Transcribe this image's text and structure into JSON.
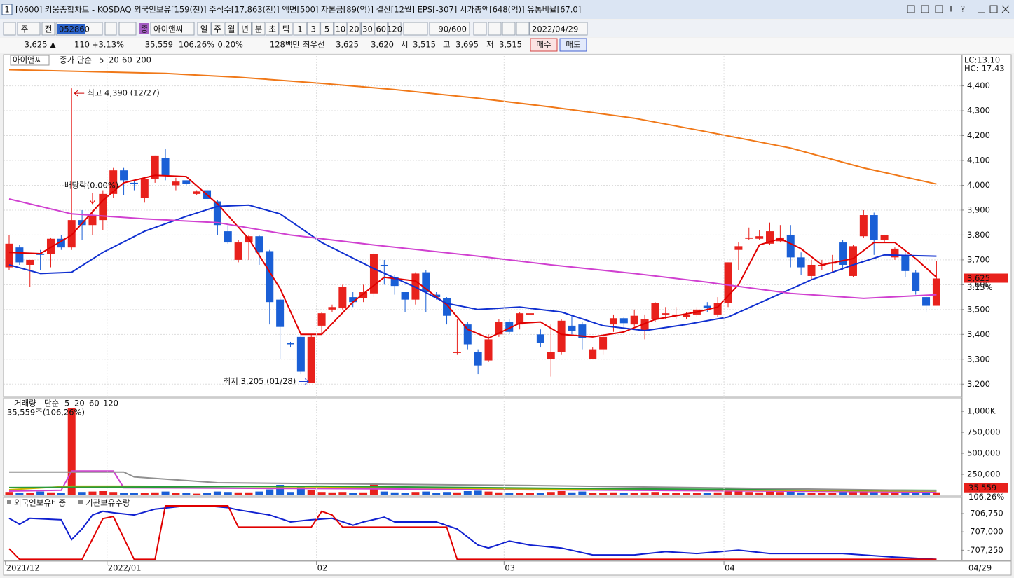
{
  "window": {
    "number": "1",
    "title": "[0600] 키움종합차트 - KOSDAQ 외국인보유[159(천)] 주식수[17,863(천)] 액면[500] 자본금[89(억)] 결산[12월] EPS[-307] 시가총액[648(억)] 유통비율[67.0]",
    "glyphs": [
      "T",
      "?"
    ]
  },
  "toolbar": {
    "period_type": "주",
    "market": "전",
    "code": "052860",
    "name_badge": "종",
    "name": "아이앤씨",
    "periods": [
      "일",
      "주",
      "월",
      "년",
      "분",
      "초",
      "틱"
    ],
    "intervals": [
      "1",
      "3",
      "5",
      "10",
      "20",
      "30",
      "60",
      "120"
    ],
    "count": "90/600",
    "date": "2022/04/29"
  },
  "quote": {
    "price": "3,625 ▲",
    "change": "110",
    "change_rate": "+3.13%",
    "volume": "35,559",
    "volume_ratio": "106.26%",
    "turnover": "0.20%",
    "amount": "128백만",
    "best_label": "최우선",
    "best_ask": "3,625",
    "best_bid": "3,620",
    "open_label": "시",
    "open": "3,515",
    "high_label": "고",
    "high": "3,695",
    "low_label": "저",
    "low": "3,515",
    "buy": "매수",
    "sell": "매도"
  },
  "chart_data": [
    {
      "type": "candlestick",
      "stock": "아이앤씨",
      "legend_label": "종가 단순",
      "up_color": "#e8211c",
      "down_color": "#1a5fd6",
      "grid": true,
      "open": [
        3670,
        3750,
        3680,
        3725,
        3725,
        3785,
        3750,
        3860,
        3840,
        3860,
        3965,
        4060,
        4010,
        3950,
        4025,
        4110,
        4000,
        4020,
        3965,
        3980,
        3935,
        3815,
        3700,
        3770,
        3795,
        3735,
        3540,
        3365,
        3390,
        3205,
        3435,
        3500,
        3505,
        3550,
        3545,
        3565,
        3680,
        3630,
        3570,
        3540,
        3650,
        3560,
        3545,
        3325,
        3440,
        3330,
        3295,
        3400,
        3450,
        3440,
        3480,
        3400,
        3300,
        3330,
        3435,
        3440,
        3300,
        3340,
        3440,
        3465,
        3440,
        3415,
        3460,
        3480,
        3475,
        3470,
        3480,
        3515,
        3480,
        3525,
        3740,
        3785,
        3785,
        3765,
        3775,
        3800,
        3710,
        3635,
        3675,
        3685,
        3770,
        3635,
        3795,
        3880,
        3780,
        3710,
        3720,
        3650,
        3550,
        3515
      ],
      "high": [
        3800,
        3760,
        3700,
        3740,
        3790,
        3800,
        4390,
        3900,
        3900,
        3980,
        4070,
        4070,
        4020,
        4030,
        4120,
        4145,
        4030,
        4020,
        3980,
        3990,
        3940,
        3840,
        3780,
        3800,
        3800,
        3740,
        3550,
        3370,
        3400,
        3400,
        3490,
        3520,
        3600,
        3570,
        3600,
        3730,
        3700,
        3640,
        3570,
        3650,
        3660,
        3570,
        3550,
        3460,
        3450,
        3340,
        3400,
        3460,
        3460,
        3490,
        3530,
        3420,
        3440,
        3460,
        3480,
        3450,
        3350,
        3400,
        3480,
        3470,
        3500,
        3480,
        3530,
        3510,
        3510,
        3490,
        3510,
        3530,
        3550,
        3690,
        3770,
        3830,
        3820,
        3850,
        3840,
        3840,
        3730,
        3700,
        3700,
        3720,
        3780,
        3760,
        3900,
        3890,
        3800,
        3750,
        3730,
        3660,
        3560,
        3695
      ],
      "low": [
        3660,
        3680,
        3590,
        3660,
        3670,
        3740,
        3740,
        3780,
        3800,
        3820,
        3950,
        3960,
        3980,
        3930,
        4010,
        4020,
        3980,
        4000,
        3960,
        3935,
        3800,
        3765,
        3690,
        3700,
        3680,
        3440,
        3300,
        3350,
        3240,
        3205,
        3400,
        3490,
        3500,
        3510,
        3530,
        3550,
        3600,
        3560,
        3490,
        3520,
        3490,
        3540,
        3440,
        3320,
        3340,
        3240,
        3290,
        3390,
        3400,
        3420,
        3460,
        3350,
        3230,
        3320,
        3400,
        3340,
        3300,
        3320,
        3410,
        3420,
        3430,
        3380,
        3450,
        3460,
        3460,
        3460,
        3470,
        3490,
        3470,
        3510,
        3660,
        3780,
        3780,
        3760,
        3770,
        3670,
        3640,
        3620,
        3660,
        3650,
        3660,
        3630,
        3790,
        3720,
        3770,
        3700,
        3630,
        3560,
        3490,
        3515
      ],
      "close": [
        3765,
        3690,
        3700,
        3720,
        3785,
        3750,
        3860,
        3840,
        3880,
        3965,
        4060,
        4020,
        4005,
        4025,
        4120,
        4040,
        4015,
        4005,
        3975,
        3945,
        3840,
        3770,
        3770,
        3795,
        3730,
        3530,
        3430,
        3360,
        3250,
        3390,
        3485,
        3510,
        3590,
        3530,
        3570,
        3725,
        3675,
        3595,
        3540,
        3645,
        3570,
        3550,
        3475,
        3330,
        3360,
        3275,
        3380,
        3450,
        3410,
        3485,
        3485,
        3365,
        3330,
        3455,
        3415,
        3385,
        3340,
        3390,
        3465,
        3445,
        3475,
        3460,
        3525,
        3485,
        3480,
        3480,
        3500,
        3505,
        3525,
        3690,
        3755,
        3790,
        3795,
        3815,
        3790,
        3710,
        3670,
        3680,
        3680,
        3690,
        3680,
        3755,
        3880,
        3780,
        3800,
        3745,
        3655,
        3575,
        3515,
        3625
      ],
      "series": [
        {
          "name": "5",
          "color": "#e00000",
          "x": [
            0,
            3,
            6,
            9,
            11,
            14,
            17,
            20,
            23,
            26,
            28,
            30,
            33,
            36,
            39,
            42,
            44,
            46,
            49,
            51,
            53,
            56,
            59,
            62,
            66,
            68,
            70,
            72,
            74,
            76,
            78,
            81,
            83,
            85,
            87,
            89
          ],
          "values": [
            3730,
            3725,
            3800,
            3940,
            4010,
            4040,
            4035,
            3925,
            3785,
            3585,
            3400,
            3400,
            3530,
            3630,
            3615,
            3520,
            3420,
            3385,
            3445,
            3450,
            3400,
            3390,
            3410,
            3460,
            3490,
            3510,
            3600,
            3760,
            3785,
            3745,
            3680,
            3705,
            3770,
            3770,
            3705,
            3630
          ]
        },
        {
          "name": "20",
          "color": "#1030d0",
          "x": [
            0,
            3,
            6,
            9,
            13,
            17,
            20,
            23,
            26,
            30,
            35,
            39,
            42,
            45,
            49,
            53,
            57,
            61,
            65,
            69,
            73,
            77,
            81,
            84,
            89
          ],
          "values": [
            3680,
            3645,
            3650,
            3730,
            3815,
            3875,
            3915,
            3920,
            3885,
            3770,
            3665,
            3590,
            3525,
            3500,
            3510,
            3490,
            3435,
            3415,
            3440,
            3470,
            3545,
            3620,
            3680,
            3720,
            3715
          ]
        },
        {
          "name": "60",
          "color": "#d040d0",
          "x": [
            0,
            6,
            13,
            20,
            27,
            35,
            45,
            52,
            60,
            67,
            75,
            82,
            89
          ],
          "values": [
            3945,
            3885,
            3865,
            3850,
            3800,
            3760,
            3715,
            3680,
            3645,
            3610,
            3565,
            3545,
            3560
          ]
        },
        {
          "name": "200",
          "color": "#f07818",
          "x": [
            0,
            15,
            22,
            30,
            37,
            45,
            52,
            60,
            67,
            75,
            82,
            89
          ],
          "values": [
            4465,
            4450,
            4435,
            4410,
            4385,
            4350,
            4315,
            4270,
            4215,
            4150,
            4070,
            4005
          ]
        }
      ],
      "ylim": [
        3150,
        4520
      ],
      "yticks": [
        {
          "value": 3200,
          "label": "3,200"
        },
        {
          "value": 3300,
          "label": "3,300"
        },
        {
          "value": 3400,
          "label": "3,400"
        },
        {
          "value": 3500,
          "label": "3,500"
        },
        {
          "value": 3600,
          "label": "3,600"
        },
        {
          "value": 3700,
          "label": "3,700"
        },
        {
          "value": 3800,
          "label": "3,800"
        },
        {
          "value": 3900,
          "label": "3,900"
        },
        {
          "value": 4000,
          "label": "4,000"
        },
        {
          "value": 4100,
          "label": "4,100"
        },
        {
          "value": 4200,
          "label": "4,200"
        },
        {
          "value": 4300,
          "label": "4,300"
        },
        {
          "value": 4400,
          "label": "4,400"
        }
      ],
      "annotations": [
        {
          "text": "최고 4,390 (12/27)",
          "index": 6,
          "value": 4390
        },
        {
          "text": "최저 3,205 (01/28)",
          "index": 29,
          "value": 3205
        },
        {
          "text": "배당락(0.00%)",
          "index": 8
        }
      ],
      "lc_label": "LC:13.10",
      "hc_label": "HC:-17.43",
      "last_price": {
        "value": 3625,
        "label": "3,625"
      },
      "last_change": "3.13%"
    },
    {
      "type": "bar",
      "legend_label": "거래량",
      "ma_label": "단순",
      "up_color": "#e8211c",
      "down_color": "#1a5fd6",
      "values": [
        40000,
        30000,
        25000,
        45000,
        35000,
        30000,
        1035000,
        40000,
        45000,
        50000,
        40000,
        30000,
        25000,
        30000,
        35000,
        45000,
        30000,
        25000,
        20000,
        25000,
        45000,
        40000,
        35000,
        35000,
        45000,
        70000,
        125000,
        40000,
        100000,
        65000,
        40000,
        35000,
        40000,
        30000,
        35000,
        135000,
        45000,
        35000,
        30000,
        40000,
        45000,
        30000,
        40000,
        35000,
        50000,
        55000,
        45000,
        35000,
        30000,
        30000,
        25000,
        30000,
        40000,
        50000,
        35000,
        45000,
        30000,
        30000,
        35000,
        25000,
        30000,
        35000,
        40000,
        30000,
        25000,
        30000,
        25000,
        30000,
        35000,
        55000,
        50000,
        40000,
        35000,
        45000,
        40000,
        45000,
        35000,
        30000,
        30000,
        25000,
        40000,
        45000,
        55000,
        40000,
        35000,
        35000,
        45000,
        55000,
        40000,
        35559
      ],
      "series": [
        {
          "name": "5",
          "color": "#d040d0",
          "x": [
            0,
            5,
            6,
            10,
            11,
            30,
            89
          ],
          "values": [
            50000,
            60000,
            290000,
            290000,
            90000,
            80000,
            40000
          ]
        },
        {
          "name": "20",
          "color": "#c8b400",
          "x": [
            0,
            6,
            11,
            30,
            50,
            89
          ],
          "values": [
            67000,
            109000,
            109000,
            101000,
            76000,
            50000
          ]
        },
        {
          "name": "60",
          "color": "#2a9a3a",
          "x": [
            0,
            30,
            60,
            89
          ],
          "values": [
            92600,
            109000,
            76000,
            59000
          ]
        },
        {
          "name": "120",
          "color": "#909090",
          "x": [
            0,
            11,
            12,
            20,
            50,
            89
          ],
          "values": [
            278000,
            278000,
            220000,
            150000,
            118000,
            55000
          ]
        }
      ],
      "header": "35,559주(106,26%)",
      "current": {
        "value": 35559,
        "label": "35,559"
      },
      "ratio_label": "106,26%",
      "ylim": [
        0,
        1160000
      ],
      "yticks": [
        {
          "value": 250000,
          "label": "250,000"
        },
        {
          "value": 500000,
          "label": "500,000"
        },
        {
          "value": 750000,
          "label": "750,000"
        },
        {
          "value": 1000000,
          "label": "1,000K"
        }
      ]
    },
    {
      "type": "line",
      "series": [
        {
          "name": "외국인보유비중",
          "color": "#1020d0",
          "x": [
            0,
            1,
            2,
            5,
            6,
            7,
            8,
            9,
            10,
            12,
            14,
            17,
            19,
            21,
            22,
            25,
            27,
            29,
            31,
            33,
            34,
            36,
            37,
            41,
            43,
            45,
            46,
            48,
            50,
            53,
            56,
            60,
            63,
            66,
            70,
            73,
            80,
            85,
            89
          ],
          "values": [
            -706815,
            -706895,
            -706815,
            -706835,
            -707105,
            -706960,
            -706770,
            -706720,
            -706740,
            -706770,
            -706690,
            -706645,
            -706645,
            -706670,
            -706700,
            -706770,
            -706865,
            -706835,
            -706815,
            -706910,
            -706865,
            -706800,
            -706865,
            -706865,
            -706960,
            -707180,
            -707220,
            -707125,
            -707180,
            -707220,
            -707315,
            -707315,
            -707270,
            -707295,
            -707250,
            -707295,
            -707295,
            -707345,
            -707375
          ]
        },
        {
          "name": "기관보유수량",
          "color": "#e00000",
          "x": [
            0,
            1,
            7,
            9,
            10,
            12,
            14,
            15,
            21,
            22,
            29,
            30,
            31,
            32,
            42,
            43,
            89
          ],
          "values": [
            -707230,
            -707375,
            -707375,
            -706820,
            -706790,
            -707375,
            -707375,
            -706645,
            -706645,
            -706935,
            -706935,
            -706720,
            -706770,
            -706935,
            -706935,
            -707375,
            -707375
          ]
        }
      ],
      "ylim": [
        -707390,
        -706540
      ],
      "yticks": [
        {
          "value": -706750,
          "label": "-706,750"
        },
        {
          "value": -707000,
          "label": "-707,000"
        },
        {
          "value": -707250,
          "label": "-707,250"
        }
      ],
      "xticks": [
        {
          "value": -0.35,
          "label": "2021/12"
        },
        {
          "value": 9.4,
          "label": "2022/01"
        },
        {
          "value": 29.5,
          "label": "02"
        },
        {
          "value": 47.5,
          "label": "03"
        },
        {
          "value": 68.6,
          "label": "04"
        }
      ],
      "last_label": "04/29"
    }
  ]
}
